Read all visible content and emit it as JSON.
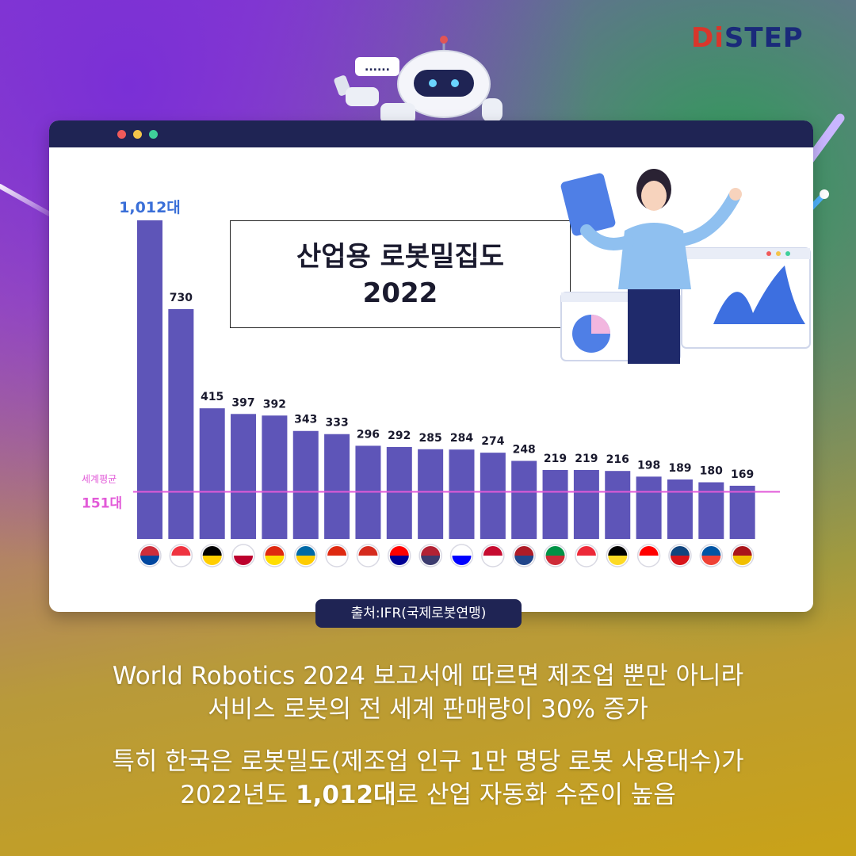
{
  "logo": {
    "d_part": "Di",
    "rest": "STEP"
  },
  "robot": {
    "speech": "......"
  },
  "title": {
    "line1": "산업용 로봇밀집도",
    "line2": "2022"
  },
  "source": "출처:IFR(국제로봇연맹)",
  "captions": {
    "line1": "World Robotics 2024 보고서에 따르면 제조업 뿐만 아니라",
    "line2": "서비스 로봇의 전 세계 판매량이 30% 증가",
    "line3": "특히 한국은 로봇밀도(제조업 인구 1만 명당 로봇 사용대수)가",
    "line4_pre": "2022년도 ",
    "line4_bold": "1,012대",
    "line4_post": "로 산업 자동화 수준이 높음"
  },
  "colors": {
    "bar": "#5e55b8",
    "avg_line": "#e25ad8",
    "first_label": "#3a6fd8",
    "window_bar": "#1f2454"
  },
  "chart_data": {
    "type": "bar",
    "categories": [
      "korea-flag",
      "singapore-flag",
      "germany-flag",
      "japan-flag",
      "china-flag",
      "sweden-flag",
      "hongkong-flag",
      "switzerland-flag",
      "taiwan-flag",
      "usa-flag",
      "slovenia-flag",
      "denmark-flag",
      "netherlands-flag",
      "italy-flag",
      "austria-flag",
      "belgium-flag",
      "canada-flag",
      "czechia-flag",
      "france-flag",
      "spain-flag"
    ],
    "values": [
      1012,
      730,
      415,
      397,
      392,
      343,
      333,
      296,
      292,
      285,
      284,
      274,
      248,
      219,
      219,
      216,
      198,
      189,
      180,
      169
    ],
    "value_labels": [
      "1,012대",
      "730",
      "415",
      "397",
      "392",
      "343",
      "333",
      "296",
      "292",
      "285",
      "284",
      "274",
      "248",
      "219",
      "219",
      "216",
      "198",
      "189",
      "180",
      "169"
    ],
    "average": {
      "label": "세계평균",
      "value": 151,
      "value_label": "151대"
    },
    "ylim": [
      0,
      1012
    ]
  }
}
